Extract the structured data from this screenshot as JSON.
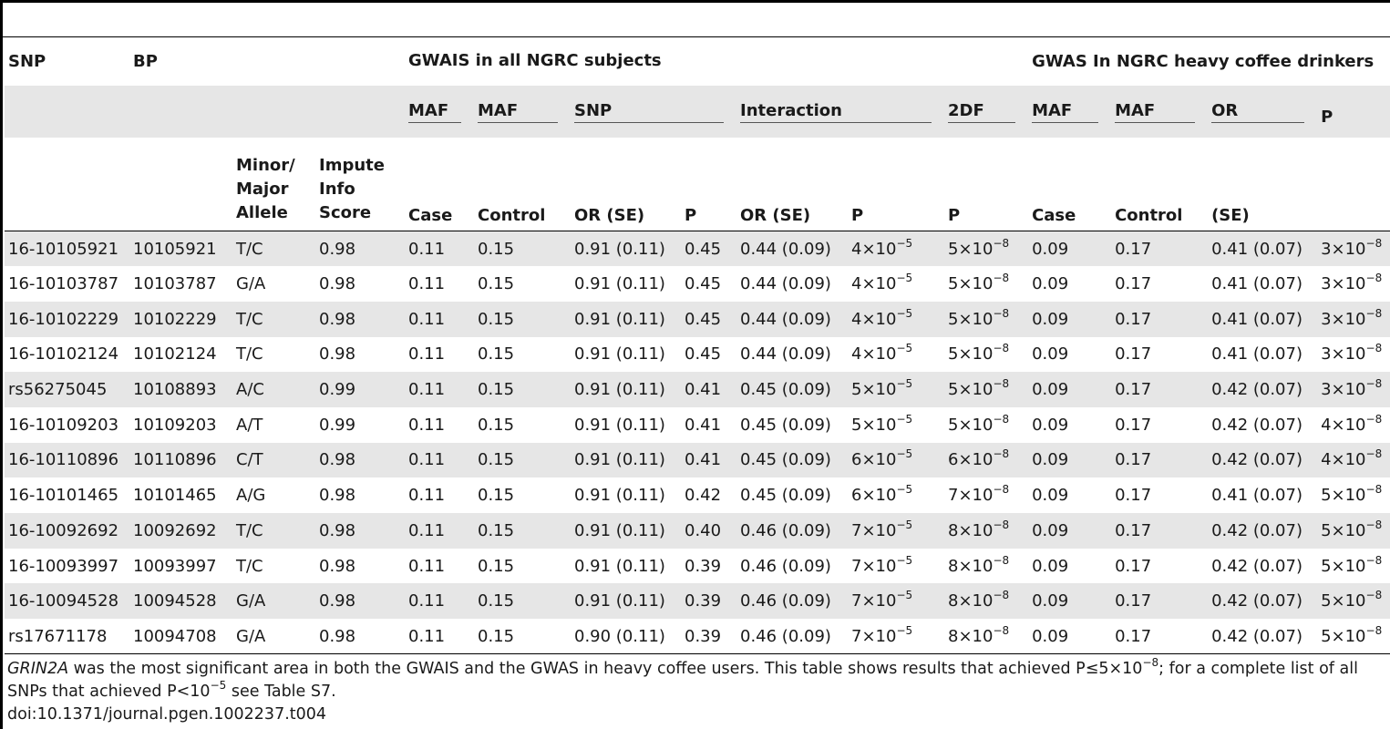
{
  "header": {
    "snp": "SNP",
    "bp": "BP",
    "group_gwais": "GWAIS in all NGRC subjects",
    "group_gwas": "GWAS In NGRC heavy coffee drinkers",
    "maf1": "MAF",
    "maf2": "MAF",
    "snp_sub": "SNP",
    "interaction": "Interaction",
    "df2": "2DF",
    "maf3": "MAF",
    "maf4": "MAF",
    "or": "OR",
    "p_top": "P",
    "allele_l1": "Minor/",
    "allele_l2": "Major",
    "allele_l3": "Allele",
    "impute_l1": "Impute",
    "impute_l2": "Info",
    "impute_l3": "Score",
    "case1": "Case",
    "control1": "Control",
    "or_se1": "OR (SE)",
    "p1": "P",
    "or_se2": "OR (SE)",
    "p2": "P",
    "p3": "P",
    "case2": "Case",
    "control2": "Control",
    "se": "(SE)"
  },
  "rows": [
    [
      "16-10105921",
      "10105921",
      "T/C",
      "0.98",
      "0.11",
      "0.15",
      "0.91 (0.11)",
      "0.45",
      "0.44 (0.09)",
      "4×10",
      "−5",
      "5×10",
      "−8",
      "0.09",
      "0.17",
      "0.41 (0.07)",
      "3×10",
      "−8"
    ],
    [
      "16-10103787",
      "10103787",
      "G/A",
      "0.98",
      "0.11",
      "0.15",
      "0.91 (0.11)",
      "0.45",
      "0.44 (0.09)",
      "4×10",
      "−5",
      "5×10",
      "−8",
      "0.09",
      "0.17",
      "0.41 (0.07)",
      "3×10",
      "−8"
    ],
    [
      "16-10102229",
      "10102229",
      "T/C",
      "0.98",
      "0.11",
      "0.15",
      "0.91 (0.11)",
      "0.45",
      "0.44 (0.09)",
      "4×10",
      "−5",
      "5×10",
      "−8",
      "0.09",
      "0.17",
      "0.41 (0.07)",
      "3×10",
      "−8"
    ],
    [
      "16-10102124",
      "10102124",
      "T/C",
      "0.98",
      "0.11",
      "0.15",
      "0.91 (0.11)",
      "0.45",
      "0.44 (0.09)",
      "4×10",
      "−5",
      "5×10",
      "−8",
      "0.09",
      "0.17",
      "0.41 (0.07)",
      "3×10",
      "−8"
    ],
    [
      "rs56275045",
      "10108893",
      "A/C",
      "0.99",
      "0.11",
      "0.15",
      "0.91 (0.11)",
      "0.41",
      "0.45 (0.09)",
      "5×10",
      "−5",
      "5×10",
      "−8",
      "0.09",
      "0.17",
      "0.42 (0.07)",
      "3×10",
      "−8"
    ],
    [
      "16-10109203",
      "10109203",
      "A/T",
      "0.99",
      "0.11",
      "0.15",
      "0.91 (0.11)",
      "0.41",
      "0.45 (0.09)",
      "5×10",
      "−5",
      "5×10",
      "−8",
      "0.09",
      "0.17",
      "0.42 (0.07)",
      "4×10",
      "−8"
    ],
    [
      "16-10110896",
      "10110896",
      "C/T",
      "0.98",
      "0.11",
      "0.15",
      "0.91 (0.11)",
      "0.41",
      "0.45 (0.09)",
      "6×10",
      "−5",
      "6×10",
      "−8",
      "0.09",
      "0.17",
      "0.42 (0.07)",
      "4×10",
      "−8"
    ],
    [
      "16-10101465",
      "10101465",
      "A/G",
      "0.98",
      "0.11",
      "0.15",
      "0.91 (0.11)",
      "0.42",
      "0.45 (0.09)",
      "6×10",
      "−5",
      "7×10",
      "−8",
      "0.09",
      "0.17",
      "0.41 (0.07)",
      "5×10",
      "−8"
    ],
    [
      "16-10092692",
      "10092692",
      "T/C",
      "0.98",
      "0.11",
      "0.15",
      "0.91 (0.11)",
      "0.40",
      "0.46 (0.09)",
      "7×10",
      "−5",
      "8×10",
      "−8",
      "0.09",
      "0.17",
      "0.42 (0.07)",
      "5×10",
      "−8"
    ],
    [
      "16-10093997",
      "10093997",
      "T/C",
      "0.98",
      "0.11",
      "0.15",
      "0.91 (0.11)",
      "0.39",
      "0.46 (0.09)",
      "7×10",
      "−5",
      "8×10",
      "−8",
      "0.09",
      "0.17",
      "0.42 (0.07)",
      "5×10",
      "−8"
    ],
    [
      "16-10094528",
      "10094528",
      "G/A",
      "0.98",
      "0.11",
      "0.15",
      "0.91 (0.11)",
      "0.39",
      "0.46 (0.09)",
      "7×10",
      "−5",
      "8×10",
      "−8",
      "0.09",
      "0.17",
      "0.42 (0.07)",
      "5×10",
      "−8"
    ],
    [
      "rs17671178",
      "10094708",
      "G/A",
      "0.98",
      "0.11",
      "0.15",
      "0.90 (0.11)",
      "0.39",
      "0.46 (0.09)",
      "7×10",
      "−5",
      "8×10",
      "−8",
      "0.09",
      "0.17",
      "0.42 (0.07)",
      "5×10",
      "−8"
    ]
  ],
  "footnote": {
    "gene": "GRIN2A",
    "text_a": " was the most significant area in both the GWAIS and the GWAS in heavy coffee users. This table shows results that achieved P≤5×10",
    "exp_a": "−8",
    "text_b": "; for a complete list of all SNPs that achieved P<10",
    "exp_b": "−5",
    "text_c": " see Table S7."
  },
  "doi": "doi:10.1371/journal.pgen.1002237.t004"
}
